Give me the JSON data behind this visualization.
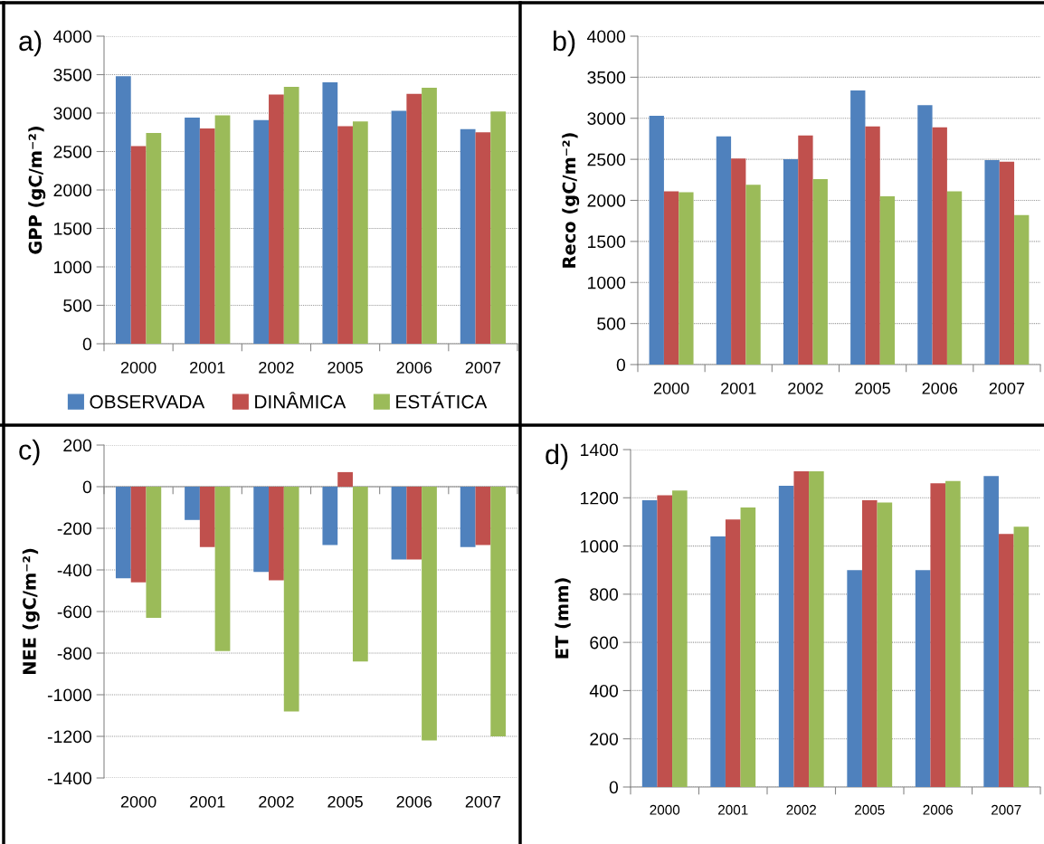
{
  "chart_data": [
    {
      "type": "bar",
      "title": "a)",
      "ylabel": "GPP (gC/m⁻²)",
      "categories": [
        "2000",
        "2001",
        "2002",
        "2005",
        "2006",
        "2007"
      ],
      "ylim": [
        0,
        4000
      ],
      "yticks": [
        0,
        500,
        1000,
        1500,
        2000,
        2500,
        3000,
        3500,
        4000
      ],
      "grid": "y",
      "legend": "bottom",
      "series": [
        {
          "name": "OBSERVADA",
          "color": "#4f81bd",
          "values": [
            3480,
            2940,
            2910,
            3400,
            3030,
            2790
          ]
        },
        {
          "name": "DINÂMICA",
          "color": "#c0504d",
          "values": [
            2570,
            2800,
            3240,
            2830,
            3250,
            2750
          ]
        },
        {
          "name": "ESTÁTICA",
          "color": "#9bbb59",
          "values": [
            2740,
            2970,
            3340,
            2890,
            3330,
            3020
          ]
        }
      ]
    },
    {
      "type": "bar",
      "title": "b)",
      "ylabel": "Reco (gC/m⁻²)",
      "categories": [
        "2000",
        "2001",
        "2002",
        "2005",
        "2006",
        "2007"
      ],
      "ylim": [
        0,
        4000
      ],
      "yticks": [
        0,
        500,
        1000,
        1500,
        2000,
        2500,
        3000,
        3500,
        4000
      ],
      "grid": "y",
      "series": [
        {
          "color": "#4f81bd",
          "values": [
            3030,
            2780,
            2500,
            3340,
            3160,
            2490
          ]
        },
        {
          "color": "#c0504d",
          "values": [
            2110,
            2510,
            2790,
            2900,
            2890,
            2470
          ]
        },
        {
          "color": "#9bbb59",
          "values": [
            2100,
            2190,
            2260,
            2050,
            2110,
            1820
          ]
        }
      ]
    },
    {
      "type": "bar",
      "title": "c)",
      "ylabel": "NEE (gC/m⁻²)",
      "categories": [
        "2000",
        "2001",
        "2002",
        "2005",
        "2006",
        "2007"
      ],
      "ylim": [
        -1400,
        200
      ],
      "yticks": [
        -1400,
        -1200,
        -1000,
        -800,
        -600,
        -400,
        -200,
        0,
        200
      ],
      "grid": "y",
      "series": [
        {
          "color": "#4f81bd",
          "values": [
            -440,
            -160,
            -410,
            -280,
            -350,
            -290
          ]
        },
        {
          "color": "#c0504d",
          "values": [
            -460,
            -290,
            -450,
            70,
            -350,
            -280
          ]
        },
        {
          "color": "#9bbb59",
          "values": [
            -630,
            -790,
            -1080,
            -840,
            -1220,
            -1200
          ]
        }
      ]
    },
    {
      "type": "bar",
      "title": "d)",
      "ylabel": "ET (mm)",
      "categories": [
        "2000",
        "2001",
        "2002",
        "2005",
        "2006",
        "2007"
      ],
      "ylim": [
        0,
        1400
      ],
      "yticks": [
        0,
        200,
        400,
        600,
        800,
        1000,
        1200,
        1400
      ],
      "grid": "y",
      "series": [
        {
          "color": "#4f81bd",
          "values": [
            1190,
            1040,
            1250,
            900,
            900,
            1290
          ]
        },
        {
          "color": "#c0504d",
          "values": [
            1210,
            1110,
            1310,
            1190,
            1260,
            1050
          ]
        },
        {
          "color": "#9bbb59",
          "values": [
            1230,
            1160,
            1310,
            1180,
            1270,
            1080
          ]
        }
      ]
    }
  ]
}
